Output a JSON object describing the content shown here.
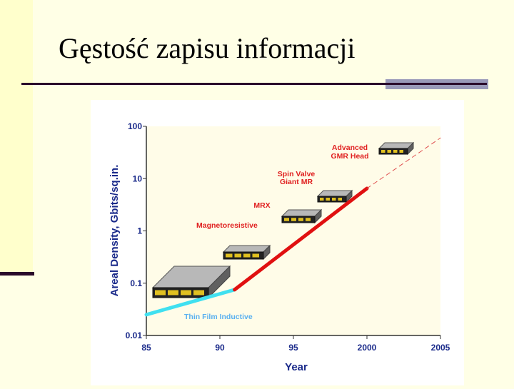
{
  "slide": {
    "title": "Gęstość zapisu informacji"
  },
  "colors": {
    "slide_bg": "#ffffe6",
    "accent_bar": "#2a0a2a",
    "plot_bg": "#fffce8",
    "axis_text": "#1a2a8a",
    "annotation_text": "#e02020",
    "thin_film_line": "#40e0f0",
    "mr_line": "#e01010",
    "projection_line": "#e05050"
  },
  "chart_data": {
    "type": "line",
    "title": "",
    "xlabel": "Year",
    "ylabel": "Areal Density, Gbits/sq.in.",
    "xlim": [
      1985,
      2005
    ],
    "ylim": [
      0.01,
      100
    ],
    "yscale": "log",
    "grid": false,
    "x_ticks": [
      {
        "value": 1985,
        "label": "85"
      },
      {
        "value": 1990,
        "label": "90"
      },
      {
        "value": 1995,
        "label": "95"
      },
      {
        "value": 2000,
        "label": "2000"
      },
      {
        "value": 2005,
        "label": "2005"
      }
    ],
    "y_ticks": [
      {
        "value": 0.01,
        "label": "0.01"
      },
      {
        "value": 0.1,
        "label": "0.1"
      },
      {
        "value": 1,
        "label": "1"
      },
      {
        "value": 10,
        "label": "10"
      },
      {
        "value": 100,
        "label": "100"
      }
    ],
    "series": [
      {
        "name": "Thin Film Inductive",
        "color": "#40e0f0",
        "style": "solid",
        "points": [
          [
            1985,
            0.025
          ],
          [
            1991,
            0.075
          ]
        ]
      },
      {
        "name": "",
        "color": "#e01010",
        "style": "solid",
        "points": [
          [
            1991,
            0.075
          ],
          [
            2000,
            6.5
          ]
        ]
      },
      {
        "name": "",
        "color": "#e05050",
        "style": "dashed",
        "points": [
          [
            2000,
            6.5
          ],
          [
            2005,
            60
          ]
        ]
      }
    ],
    "annotations": [
      {
        "text": "Thin Film Inductive",
        "color": "#5ab0f0"
      },
      {
        "text": "Magnetoresistive",
        "color": "#e02020"
      },
      {
        "text": "MRX",
        "color": "#e02020"
      },
      {
        "text": "Spin Valve",
        "color": "#e02020"
      },
      {
        "text": "Giant MR",
        "color": "#e02020"
      },
      {
        "text": "Advanced",
        "color": "#e02020"
      },
      {
        "text": "GMR Head",
        "color": "#e02020"
      }
    ]
  }
}
